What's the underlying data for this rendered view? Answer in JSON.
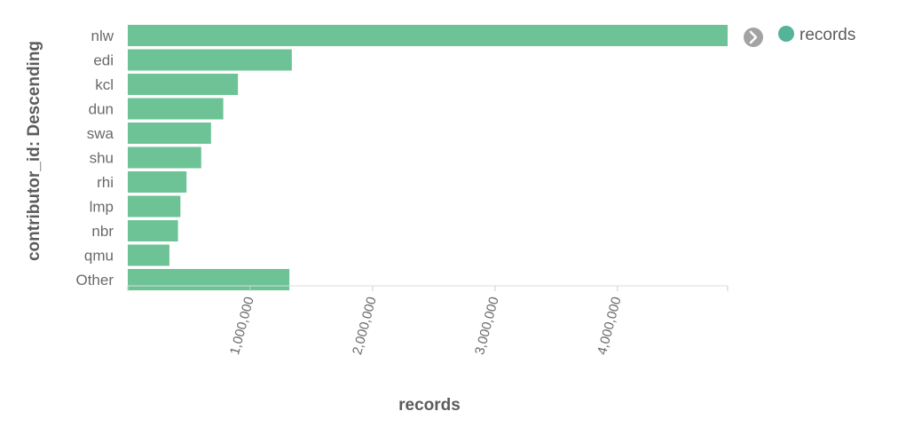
{
  "chart_data": {
    "type": "bar",
    "orientation": "horizontal",
    "categories": [
      "nlw",
      "edi",
      "kcl",
      "dun",
      "swa",
      "shu",
      "rhi",
      "lmp",
      "nbr",
      "qmu",
      "Other"
    ],
    "series": [
      {
        "name": "records",
        "values": [
          4900000,
          1340000,
          900000,
          780000,
          680000,
          600000,
          480000,
          430000,
          410000,
          340000,
          1320000
        ]
      }
    ],
    "xlabel": "records",
    "ylabel": "contributor_id: Descending",
    "xlim": [
      0,
      4900000
    ],
    "xticks": [
      1000000,
      2000000,
      3000000,
      4000000
    ],
    "xtick_labels": [
      "1,000,000",
      "2,000,000",
      "3,000,000",
      "4,000,000"
    ],
    "grid": false,
    "legend": "top-right",
    "colors": {
      "bar": "#6dc396",
      "legend_dot": "#54b399",
      "axis": "#dcdcdc",
      "toggle_icon": "#9a9a9a"
    }
  },
  "legend": {
    "toggle_icon": "chevron-right-circle-icon",
    "label": "records"
  }
}
